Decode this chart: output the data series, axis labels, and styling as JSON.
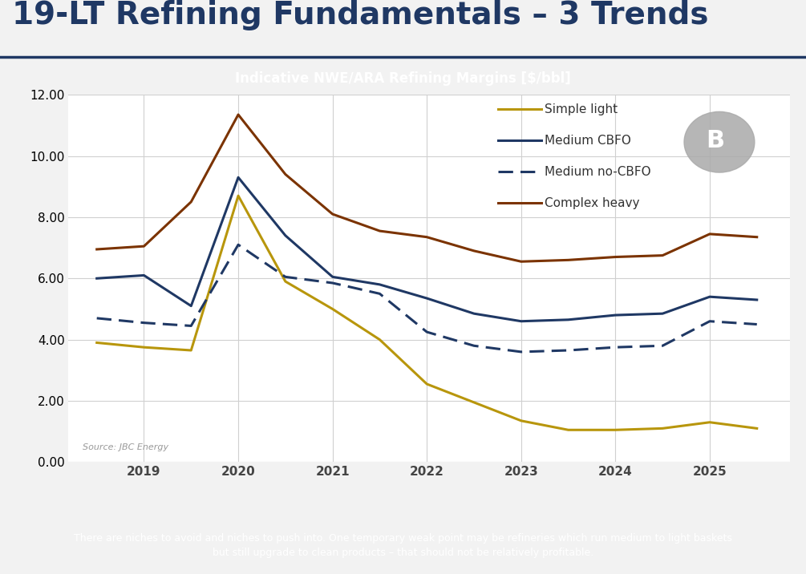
{
  "title": "19-LT Refining Fundamentals – 3 Trends",
  "subtitle": "Indicative NWE/ARA Refining Margins [$/bbl]",
  "source": "Source: JBC Energy",
  "footer": "There are niches to avoid and niches to push into. One temporary weak point may be refineries which run medium to light baskets\nbut still upgrade to clean products – that should not be relatively profitable.",
  "x_labels": [
    "2019",
    "2020",
    "2021",
    "2022",
    "2023",
    "2024",
    "2025"
  ],
  "simple_light": {
    "label": "Simple light",
    "color": "#B8960C",
    "linestyle": "solid",
    "linewidth": 2.2,
    "x": [
      2018.5,
      2019.0,
      2019.5,
      2020.0,
      2020.5,
      2021.0,
      2021.5,
      2022.0,
      2022.5,
      2023.0,
      2023.5,
      2024.0,
      2024.5,
      2025.0,
      2025.5
    ],
    "y": [
      3.9,
      3.75,
      3.65,
      8.7,
      5.9,
      5.0,
      4.0,
      2.55,
      1.95,
      1.35,
      1.05,
      1.05,
      1.1,
      1.3,
      1.1
    ]
  },
  "medium_cbfo": {
    "label": "Medium CBFO",
    "color": "#1F3864",
    "linestyle": "solid",
    "linewidth": 2.2,
    "x": [
      2018.5,
      2019.0,
      2019.5,
      2020.0,
      2020.5,
      2021.0,
      2021.5,
      2022.0,
      2022.5,
      2023.0,
      2023.5,
      2024.0,
      2024.5,
      2025.0,
      2025.5
    ],
    "y": [
      6.0,
      6.1,
      5.1,
      9.3,
      7.4,
      6.05,
      5.8,
      5.35,
      4.85,
      4.6,
      4.65,
      4.8,
      4.85,
      5.4,
      5.3
    ]
  },
  "medium_no_cbfo": {
    "label": "Medium no-CBFO",
    "color": "#1F3864",
    "linestyle": "dashed",
    "linewidth": 2.2,
    "x": [
      2018.5,
      2019.0,
      2019.5,
      2020.0,
      2020.5,
      2021.0,
      2021.5,
      2022.0,
      2022.5,
      2023.0,
      2023.5,
      2024.0,
      2024.5,
      2025.0,
      2025.5
    ],
    "y": [
      4.7,
      4.55,
      4.45,
      7.1,
      6.05,
      5.85,
      5.5,
      4.25,
      3.8,
      3.6,
      3.65,
      3.75,
      3.8,
      4.6,
      4.5
    ]
  },
  "complex_heavy": {
    "label": "Complex heavy",
    "color": "#7B3300",
    "linestyle": "solid",
    "linewidth": 2.2,
    "x": [
      2018.5,
      2019.0,
      2019.5,
      2020.0,
      2020.5,
      2021.0,
      2021.5,
      2022.0,
      2022.5,
      2023.0,
      2023.5,
      2024.0,
      2024.5,
      2025.0,
      2025.5
    ],
    "y": [
      6.95,
      7.05,
      8.5,
      11.35,
      9.4,
      8.1,
      7.55,
      7.35,
      6.9,
      6.55,
      6.6,
      6.7,
      6.75,
      7.45,
      7.35
    ]
  },
  "ylim": [
    0.0,
    12.0
  ],
  "yticks": [
    0.0,
    2.0,
    4.0,
    6.0,
    8.0,
    10.0,
    12.0
  ],
  "xlim": [
    2018.2,
    2025.85
  ],
  "title_color": "#1F3864",
  "title_fontsize": 28,
  "subtitle_bg_color": "#A89880",
  "subtitle_text_color": "#ffffff",
  "footer_bg_color": "#1F5CA6",
  "footer_text_color": "#ffffff",
  "plot_bg_color": "#ffffff",
  "outer_bg_color": "#f2f2f2",
  "grid_color": "#d0d0d0",
  "tick_fontsize": 11,
  "legend_fontsize": 11,
  "underline_color": "#1F3864"
}
